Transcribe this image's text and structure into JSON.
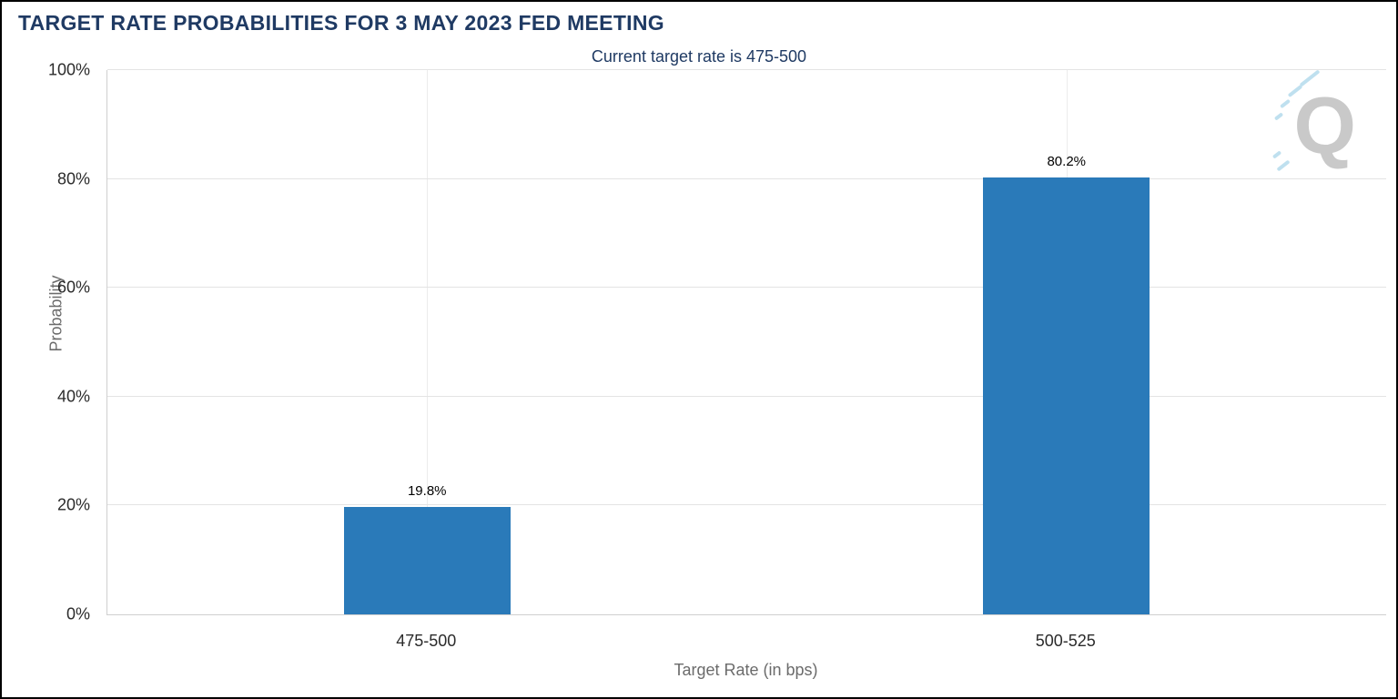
{
  "header": {
    "title": "TARGET RATE PROBABILITIES FOR 3 MAY 2023 FED MEETING"
  },
  "chart_data": {
    "type": "bar",
    "title": "TARGET RATE PROBABILITIES FOR 3 MAY 2023 FED MEETING",
    "subtitle": "Current target rate is 475-500",
    "categories": [
      "475-500",
      "500-525"
    ],
    "values": [
      19.8,
      80.2
    ],
    "value_labels": [
      "19.8%",
      "80.2%"
    ],
    "xlabel": "Target Rate (in bps)",
    "ylabel": "Probability",
    "ylim": [
      0,
      100
    ],
    "yticks": [
      0,
      20,
      40,
      60,
      80,
      100
    ],
    "ytick_labels": [
      "0%",
      "20%",
      "40%",
      "60%",
      "80%",
      "100%"
    ],
    "bar_color": "#2a7ab9",
    "grid": true,
    "legend": "none"
  },
  "watermark": {
    "letter": "Q"
  }
}
